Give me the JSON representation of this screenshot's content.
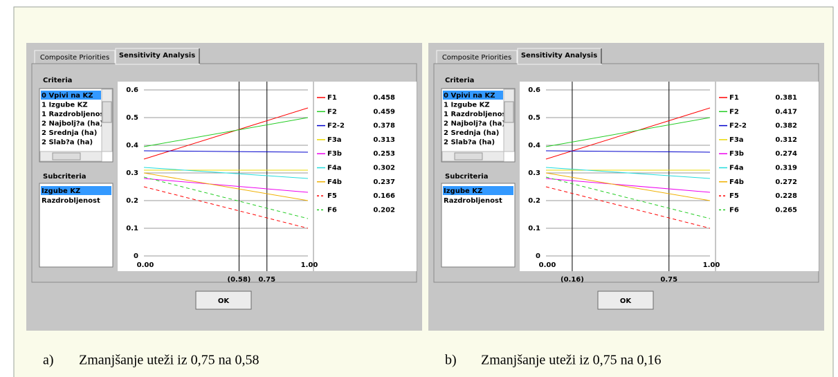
{
  "panels": [
    {
      "tabs": [
        "Composite Priorities",
        "Sensitivity Analysis"
      ],
      "criteria_label": "Criteria",
      "criteria": [
        "0 Vpivi na KZ",
        "1 Izgube KZ",
        "1 Razdrobljenos",
        "2 Najbolj?a (ha)",
        "2 Srednja (ha)",
        "2 Slab?a (ha)"
      ],
      "subcriteria_label": "Subcriteria",
      "subcriteria": [
        "Izgube KZ",
        "Razdrobljenost"
      ],
      "chart": {
        "type": "line",
        "x": [
          0,
          1
        ],
        "xlim": [
          0,
          1
        ],
        "ylim": [
          0,
          0.6
        ],
        "yticks": [
          0,
          0.1,
          0.2,
          0.3,
          0.4,
          0.5,
          0.6
        ],
        "xticks": [
          {
            "value": 0,
            "label": "0.00"
          },
          {
            "value": 1,
            "label": "1.00"
          }
        ],
        "markers": [
          {
            "value": 0.58,
            "label": "(0.58)"
          },
          0.75
        ],
        "series": [
          {
            "name": "F1",
            "color": "#ff0000",
            "dashed": false,
            "values": [
              0.35,
              0.535
            ],
            "current": 0.458
          },
          {
            "name": "F2",
            "color": "#22cc22",
            "dashed": false,
            "values": [
              0.395,
              0.5
            ],
            "current": 0.459
          },
          {
            "name": "F2-2",
            "color": "#0000cc",
            "dashed": false,
            "values": [
              0.38,
              0.375
            ],
            "current": 0.378
          },
          {
            "name": "F3a",
            "color": "#e8d800",
            "dashed": false,
            "values": [
              0.31,
              0.31
            ],
            "current": 0.313
          },
          {
            "name": "F3b",
            "color": "#ee00ee",
            "dashed": false,
            "values": [
              0.28,
              0.23
            ],
            "current": 0.253
          },
          {
            "name": "F4a",
            "color": "#22dddd",
            "dashed": false,
            "values": [
              0.32,
              0.28
            ],
            "current": 0.302
          },
          {
            "name": "F4b",
            "color": "#f0b000",
            "dashed": false,
            "values": [
              0.3,
              0.2
            ],
            "current": 0.237
          },
          {
            "name": "F5",
            "color": "#ff0000",
            "dashed": true,
            "values": [
              0.25,
              0.1
            ],
            "current": 0.166
          },
          {
            "name": "F6",
            "color": "#22cc22",
            "dashed": true,
            "values": [
              0.285,
              0.135
            ],
            "current": 0.202
          }
        ]
      },
      "button": "OK",
      "caption_marker": "a)",
      "caption": "Zmanjšanje uteži iz 0,75 na 0,58"
    },
    {
      "tabs": [
        "Composite Priorities",
        "Sensitivity Analysis"
      ],
      "criteria_label": "Criteria",
      "criteria": [
        "0 Vpivi na KZ",
        "1 Izgube KZ",
        "1 Razdrobljenos",
        "2 Najbolj?a (ha)",
        "2 Srednja (ha)",
        "2 Slab?a (ha)"
      ],
      "subcriteria_label": "Subcriteria",
      "subcriteria": [
        "Izgube KZ",
        "Razdrobljenost"
      ],
      "chart": {
        "type": "line",
        "x": [
          0,
          1
        ],
        "xlim": [
          0,
          1
        ],
        "ylim": [
          0,
          0.6
        ],
        "yticks": [
          0,
          0.1,
          0.2,
          0.3,
          0.4,
          0.5,
          0.6
        ],
        "xticks": [
          {
            "value": 0,
            "label": "0.00"
          },
          {
            "value": 1,
            "label": "1.00"
          }
        ],
        "markers": [
          {
            "value": 0.16,
            "label": "(0.16)"
          },
          0.75
        ],
        "series": [
          {
            "name": "F1",
            "color": "#ff0000",
            "dashed": false,
            "values": [
              0.35,
              0.535
            ],
            "current": 0.381
          },
          {
            "name": "F2",
            "color": "#22cc22",
            "dashed": false,
            "values": [
              0.395,
              0.5
            ],
            "current": 0.417
          },
          {
            "name": "F2-2",
            "color": "#0000cc",
            "dashed": false,
            "values": [
              0.38,
              0.375
            ],
            "current": 0.382
          },
          {
            "name": "F3a",
            "color": "#e8d800",
            "dashed": false,
            "values": [
              0.31,
              0.31
            ],
            "current": 0.312
          },
          {
            "name": "F3b",
            "color": "#ee00ee",
            "dashed": false,
            "values": [
              0.28,
              0.23
            ],
            "current": 0.274
          },
          {
            "name": "F4a",
            "color": "#22dddd",
            "dashed": false,
            "values": [
              0.32,
              0.28
            ],
            "current": 0.319
          },
          {
            "name": "F4b",
            "color": "#f0b000",
            "dashed": false,
            "values": [
              0.3,
              0.2
            ],
            "current": 0.272
          },
          {
            "name": "F5",
            "color": "#ff0000",
            "dashed": true,
            "values": [
              0.25,
              0.1
            ],
            "current": 0.228
          },
          {
            "name": "F6",
            "color": "#22cc22",
            "dashed": true,
            "values": [
              0.285,
              0.135
            ],
            "current": 0.265
          }
        ]
      },
      "button": "OK",
      "caption_marker": "b)",
      "caption": "Zmanjšanje uteži iz 0,75 na 0,16"
    }
  ]
}
